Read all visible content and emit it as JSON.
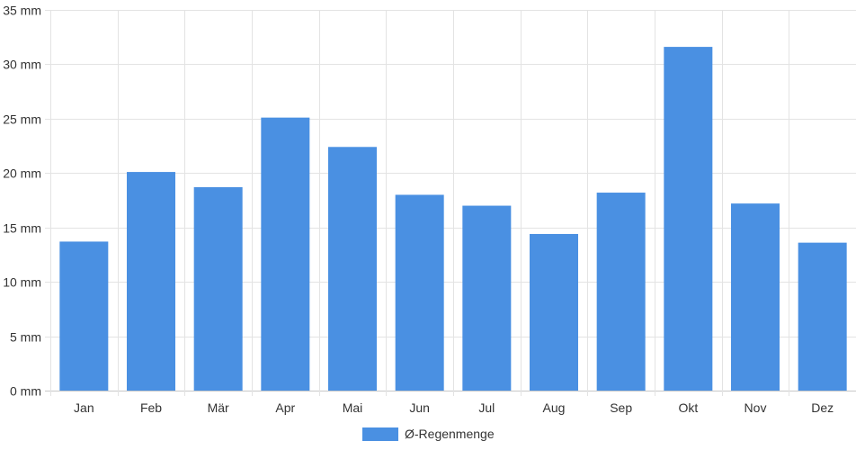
{
  "chart_data": {
    "type": "bar",
    "categories": [
      "Jan",
      "Feb",
      "Mär",
      "Apr",
      "Mai",
      "Jun",
      "Jul",
      "Aug",
      "Sep",
      "Okt",
      "Nov",
      "Dez"
    ],
    "series": [
      {
        "name": "Ø-Regenmenge",
        "values": [
          13.7,
          20.1,
          18.7,
          25.1,
          22.4,
          18.0,
          17.0,
          14.4,
          18.2,
          31.6,
          17.2,
          13.6
        ],
        "color": "#4a90e2"
      }
    ],
    "y_tick_labels": [
      "0 mm",
      "5 mm",
      "10 mm",
      "15 mm",
      "20 mm",
      "25 mm",
      "30 mm",
      "35 mm"
    ],
    "y_ticks": [
      0,
      5,
      10,
      15,
      20,
      25,
      30,
      35
    ],
    "ylim": [
      0,
      35
    ],
    "y_unit": "mm",
    "grid": true,
    "legend_position": "bottom-center",
    "title": "",
    "xlabel": "",
    "ylabel": ""
  }
}
